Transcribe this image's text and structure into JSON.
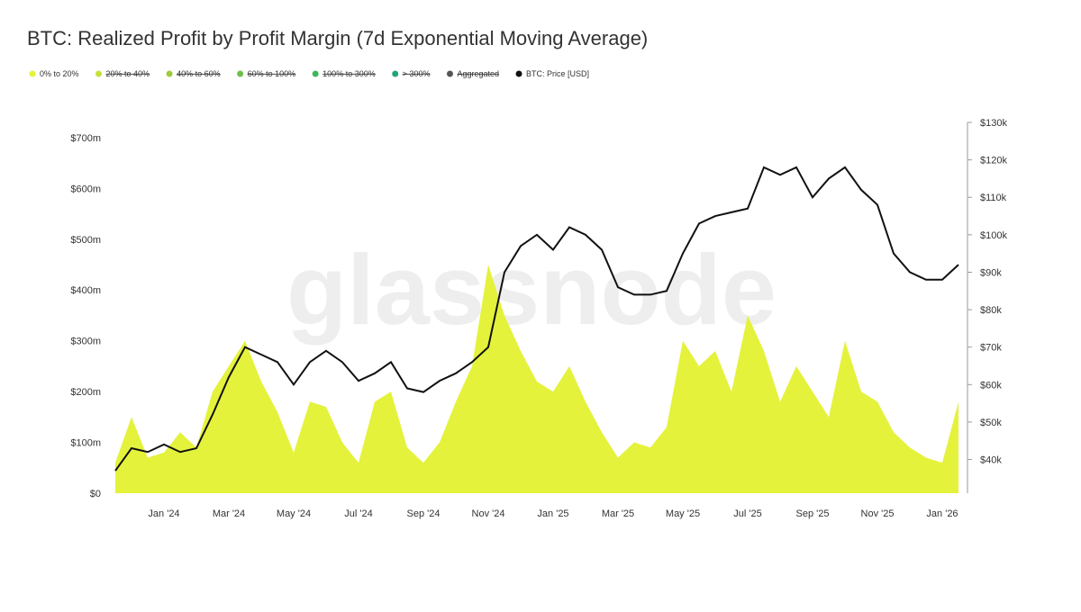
{
  "chart_data": {
    "type": "area-line",
    "title": "BTC: Realized Profit by Profit Margin (7d Exponential Moving Average)",
    "watermark": "glassnode",
    "categories": [
      null,
      null,
      null,
      "Jan '24",
      null,
      null,
      null,
      "Mar '24",
      null,
      null,
      null,
      "May '24",
      null,
      null,
      null,
      "Jul '24",
      null,
      null,
      null,
      "Sep '24",
      null,
      null,
      null,
      "Nov '24",
      null,
      null,
      null,
      "Jan '25",
      null,
      null,
      null,
      "Mar '25",
      null,
      null,
      null,
      "May '25",
      null,
      null,
      null,
      "Jul '25",
      null,
      null,
      null,
      "Sep '25",
      null,
      null,
      null,
      "Nov '25",
      null,
      null,
      null,
      "Jan '26",
      null
    ],
    "series": [
      {
        "name": "0% to 20%",
        "color": "#e4f23c",
        "kind": "area",
        "values": [
          60,
          150,
          70,
          80,
          120,
          90,
          200,
          250,
          300,
          220,
          160,
          80,
          180,
          170,
          100,
          60,
          180,
          200,
          90,
          60,
          100,
          180,
          250,
          450,
          350,
          280,
          220,
          200,
          250,
          180,
          120,
          70,
          100,
          90,
          130,
          300,
          250,
          280,
          200,
          350,
          280,
          180,
          250,
          200,
          150,
          300,
          200,
          180,
          120,
          90,
          70,
          60,
          180
        ]
      },
      {
        "name": "20% to 40%",
        "color": "#c6e03a",
        "hidden": true
      },
      {
        "name": "40% to 60%",
        "color": "#9ccc3c",
        "hidden": true
      },
      {
        "name": "60% to 100%",
        "color": "#6cbf4a",
        "hidden": true
      },
      {
        "name": "100% to 300%",
        "color": "#3cb85a",
        "hidden": true
      },
      {
        "name": "> 300%",
        "color": "#1fa67a",
        "hidden": true
      },
      {
        "name": "Aggregated",
        "color": "#555555",
        "hidden": true
      },
      {
        "name": "BTC: Price [USD]",
        "color": "#111111",
        "kind": "line",
        "axis": "y2",
        "values": [
          37,
          43,
          42,
          44,
          42,
          43,
          52,
          62,
          70,
          68,
          66,
          60,
          66,
          69,
          66,
          61,
          63,
          66,
          59,
          58,
          61,
          63,
          66,
          70,
          90,
          97,
          100,
          96,
          102,
          100,
          96,
          86,
          84,
          84,
          85,
          95,
          103,
          105,
          106,
          107,
          118,
          116,
          118,
          110,
          115,
          118,
          112,
          108,
          95,
          90,
          88,
          88,
          92
        ]
      }
    ],
    "ylim": [
      0,
      730
    ],
    "yticks": [
      {
        "value": 0,
        "label": "$0"
      },
      {
        "value": 100,
        "label": "$100m"
      },
      {
        "value": 200,
        "label": "$200m"
      },
      {
        "value": 300,
        "label": "$300m"
      },
      {
        "value": 400,
        "label": "$400m"
      },
      {
        "value": 500,
        "label": "$500m"
      },
      {
        "value": 600,
        "label": "$600m"
      },
      {
        "value": 700,
        "label": "$700m"
      }
    ],
    "y2lim": [
      31,
      130
    ],
    "y2ticks": [
      {
        "value": 40,
        "label": "$40k"
      },
      {
        "value": 50,
        "label": "$50k"
      },
      {
        "value": 60,
        "label": "$60k"
      },
      {
        "value": 70,
        "label": "$70k"
      },
      {
        "value": 80,
        "label": "$80k"
      },
      {
        "value": 90,
        "label": "$90k"
      },
      {
        "value": 100,
        "label": "$100k"
      },
      {
        "value": 110,
        "label": "$110k"
      },
      {
        "value": 120,
        "label": "$120k"
      },
      {
        "value": 130,
        "label": "$130k"
      }
    ],
    "grid": false
  }
}
